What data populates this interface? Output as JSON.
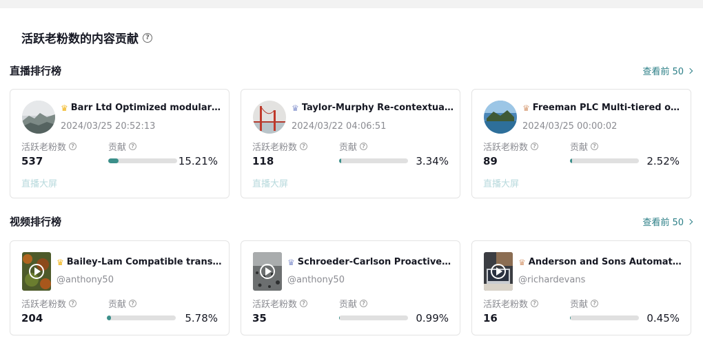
{
  "page_title": "活跃老粉数的内容贡献",
  "help_glyph": "?",
  "live": {
    "section_title": "直播排行榜",
    "view_top_label": "查看前 50",
    "fans_label": "活跃老粉数",
    "contrib_label": "贡献",
    "screen_label": "直播大屏",
    "cards": [
      {
        "rank_icon": "gold-crown-icon",
        "crown_color": "#f2b720",
        "name": "Barr Ltd Optimized modular pr...",
        "datetime": "2024/03/25 20:52:13",
        "fans": "537",
        "contrib_pct": "15.21%",
        "contrib_fraction": 0.1521,
        "image": "mountain-fog"
      },
      {
        "rank_icon": "silver-crown-icon",
        "crown_color": "#8d9ad1",
        "name": "Taylor-Murphy Re-contextuali...",
        "datetime": "2024/03/22 04:06:51",
        "fans": "118",
        "contrib_pct": "3.34%",
        "contrib_fraction": 0.0334,
        "image": "golden-gate-bridge"
      },
      {
        "rank_icon": "bronze-crown-icon",
        "crown_color": "#d9a27d",
        "name": "Freeman PLC Multi-tiered obje...",
        "datetime": "2024/03/25 00:00:02",
        "fans": "89",
        "contrib_pct": "2.52%",
        "contrib_fraction": 0.0252,
        "image": "lake-island"
      }
    ]
  },
  "video": {
    "section_title": "视频排行榜",
    "view_top_label": "查看前 50",
    "fans_label": "活跃老粉数",
    "contrib_label": "贡献",
    "cards": [
      {
        "rank_icon": "gold-crown-icon",
        "crown_color": "#f2b720",
        "name": "Bailey-Lam Compatible transiti...",
        "author": "@anthony50",
        "fans": "204",
        "contrib_pct": "5.78%",
        "contrib_fraction": 0.0578,
        "image": "autumn-forest"
      },
      {
        "rank_icon": "silver-crown-icon",
        "crown_color": "#8d9ad1",
        "name": "Schroeder-Carlson Proactive s...",
        "author": "@anthony50",
        "fans": "35",
        "contrib_pct": "0.99%",
        "contrib_fraction": 0.0099,
        "image": "rain-drops"
      },
      {
        "rank_icon": "bronze-crown-icon",
        "crown_color": "#d9a27d",
        "name": "Anderson and Sons Automated...",
        "author": "@richardevans",
        "fans": "16",
        "contrib_pct": "0.45%",
        "contrib_fraction": 0.0045,
        "image": "desk-laptop"
      }
    ]
  }
}
